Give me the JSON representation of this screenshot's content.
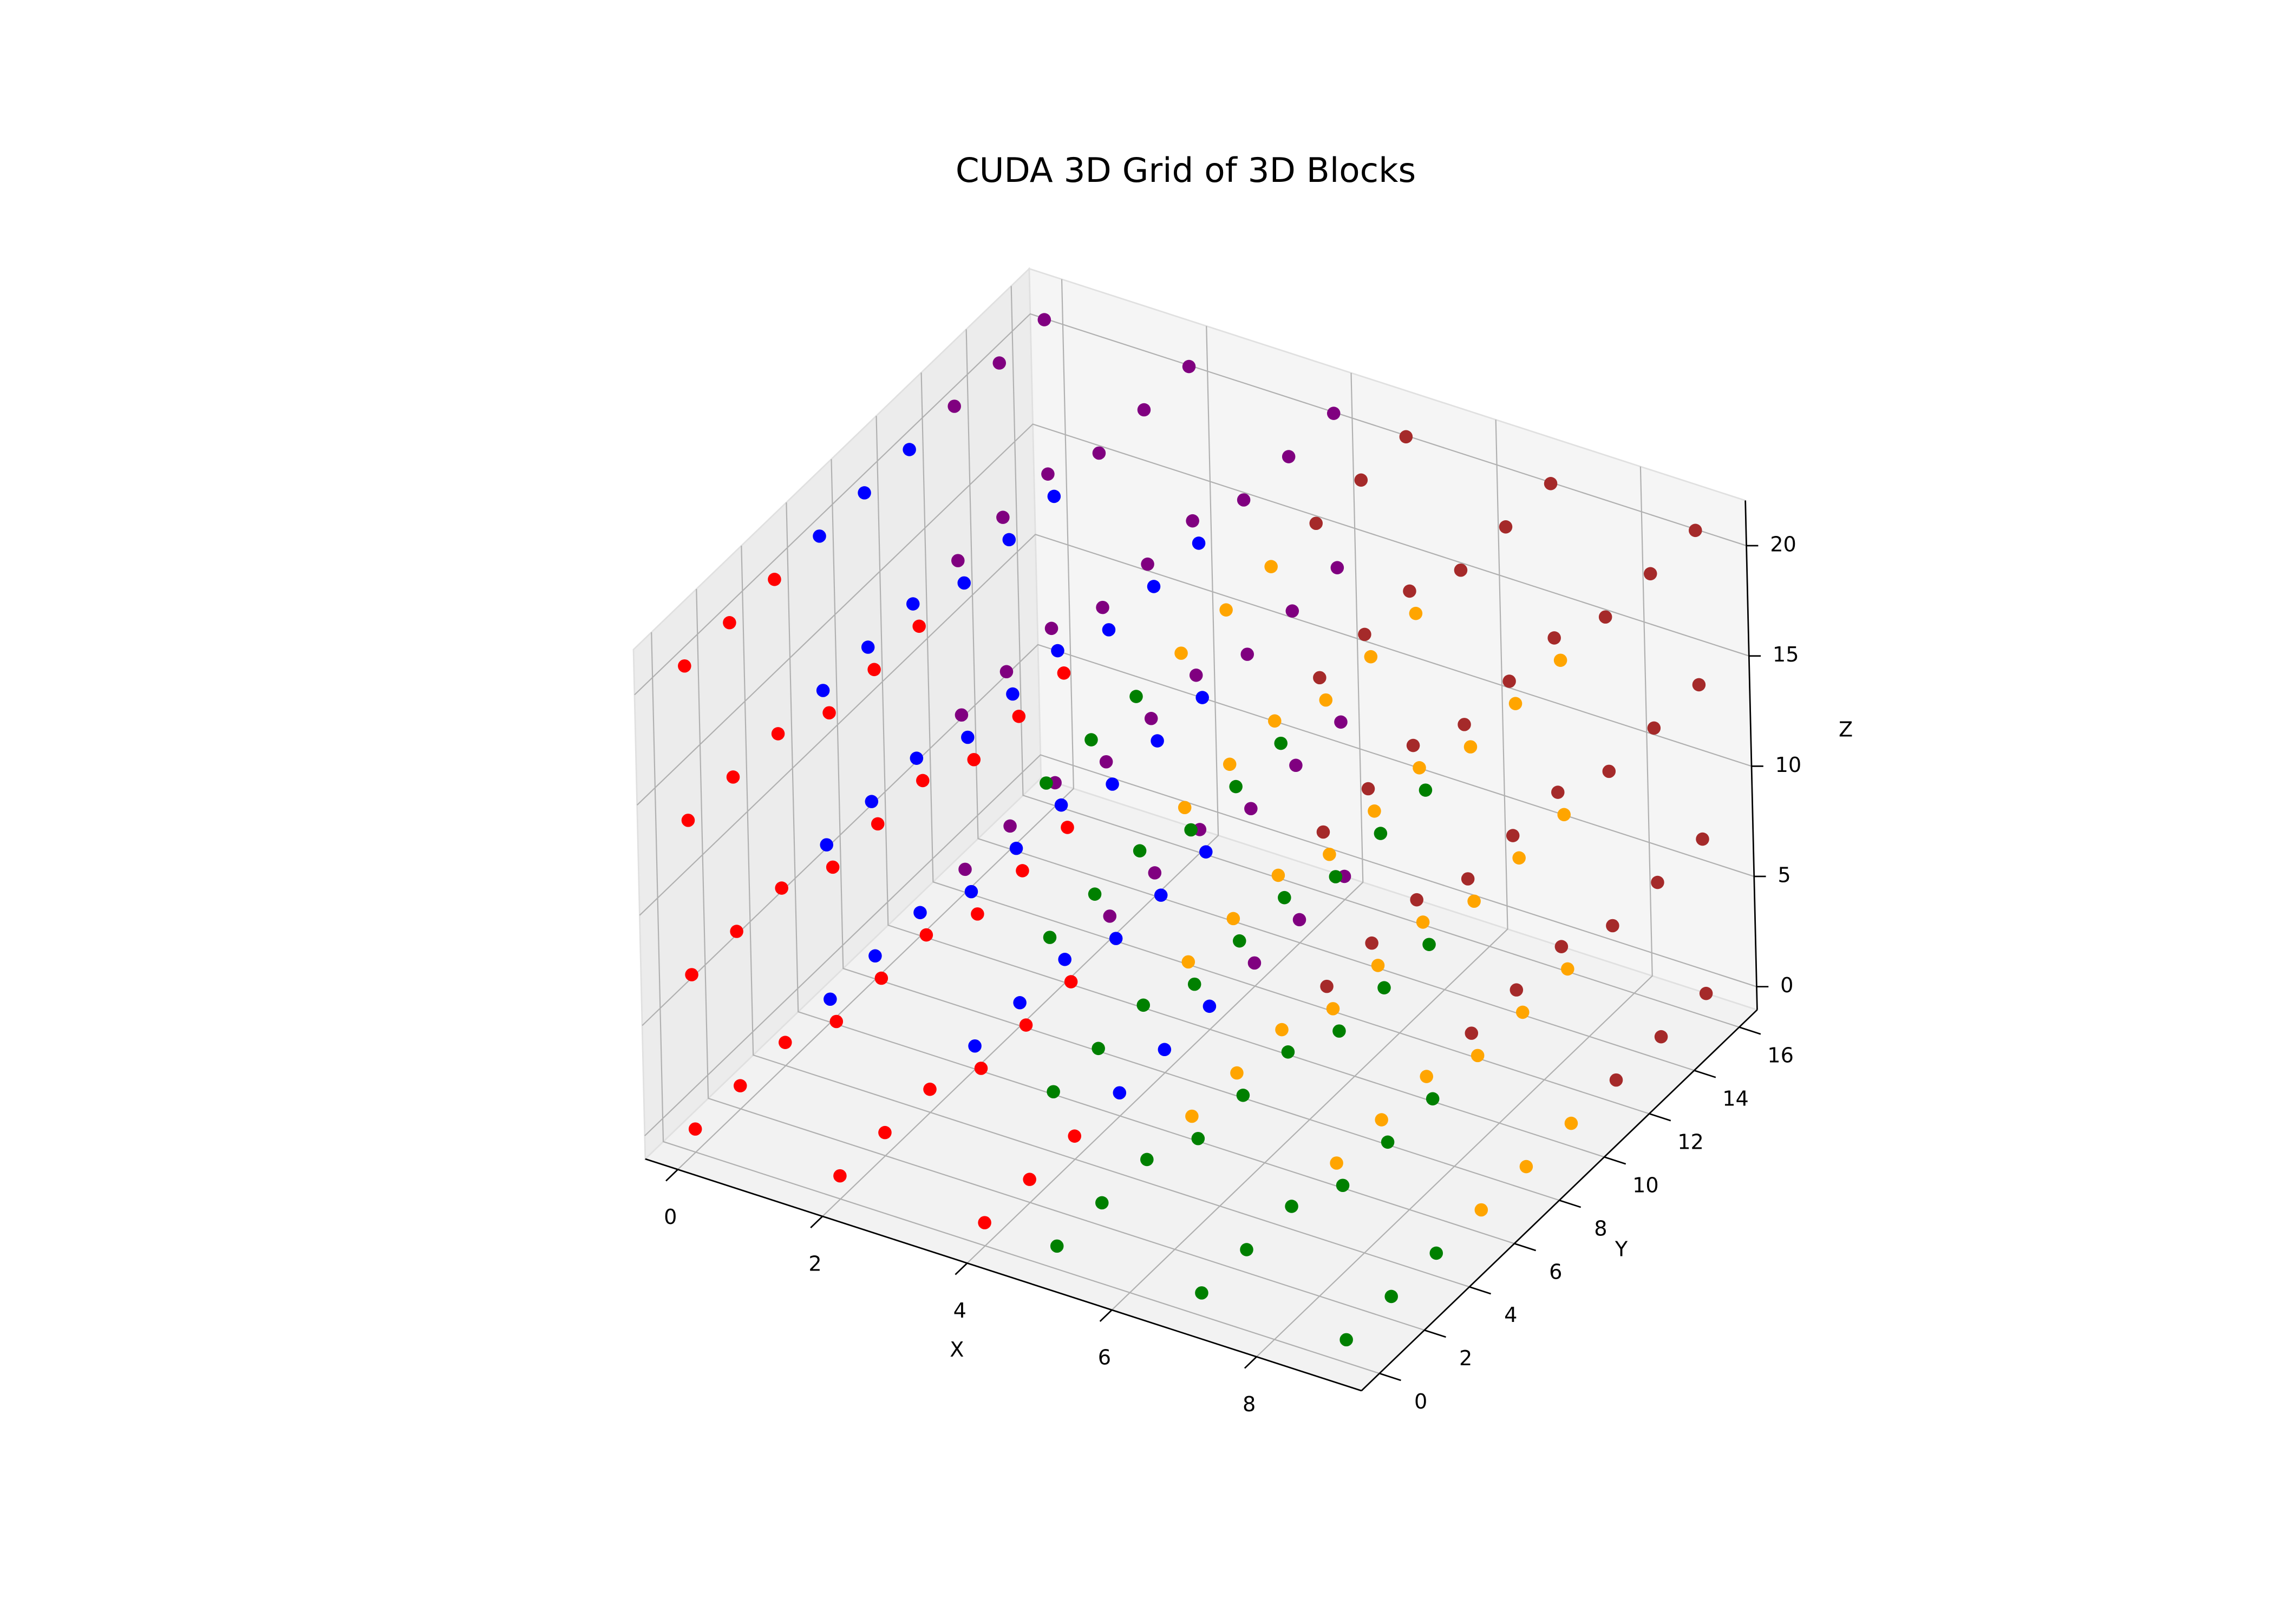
{
  "chart_data": {
    "type": "scatter",
    "title": "CUDA 3D Grid of 3D Blocks",
    "x_label": "X",
    "y_label": "Y",
    "z_label": "Z",
    "xlim": [
      -0.45,
      9.45
    ],
    "ylim": [
      -0.8,
      16.8
    ],
    "zlim": [
      -1.05,
      22.05
    ],
    "xticks": [
      0,
      2,
      4,
      6,
      8
    ],
    "yticks": [
      0,
      2,
      4,
      6,
      8,
      10,
      12,
      14,
      16
    ],
    "zticks": [
      0,
      5,
      10,
      15,
      20
    ],
    "grid": true,
    "series": [
      {
        "color": "red",
        "x": [
          0,
          0,
          0,
          0,
          0,
          0,
          0,
          0,
          0,
          0,
          0,
          0,
          2,
          2,
          2,
          2,
          2,
          2,
          2,
          2,
          2,
          2,
          2,
          2,
          4,
          4,
          4,
          4,
          4,
          4,
          4,
          4,
          4,
          4,
          4,
          4
        ],
        "y": [
          0,
          0,
          0,
          0,
          2,
          2,
          2,
          2,
          4,
          4,
          4,
          4,
          0,
          0,
          0,
          0,
          2,
          2,
          2,
          2,
          4,
          4,
          4,
          4,
          0,
          0,
          0,
          0,
          2,
          2,
          2,
          2,
          4,
          4,
          4,
          4
        ],
        "z": [
          0,
          7,
          14,
          21,
          0,
          7,
          14,
          21,
          0,
          7,
          14,
          21,
          0,
          7,
          14,
          21,
          0,
          7,
          14,
          21,
          0,
          7,
          14,
          21,
          0,
          7,
          14,
          21,
          0,
          7,
          14,
          21,
          0,
          7,
          14,
          21
        ]
      },
      {
        "color": "green",
        "x": [
          5,
          5,
          5,
          5,
          5,
          5,
          5,
          5,
          5,
          5,
          5,
          5,
          7,
          7,
          7,
          7,
          7,
          7,
          7,
          7,
          7,
          7,
          7,
          7,
          9,
          9,
          9,
          9,
          9,
          9,
          9,
          9,
          9,
          9,
          9,
          9
        ],
        "y": [
          0,
          0,
          0,
          0,
          2,
          2,
          2,
          2,
          4,
          4,
          4,
          4,
          0,
          0,
          0,
          0,
          2,
          2,
          2,
          2,
          4,
          4,
          4,
          4,
          0,
          0,
          0,
          0,
          2,
          2,
          2,
          2,
          4,
          4,
          4,
          4
        ],
        "z": [
          0,
          7,
          14,
          21,
          0,
          7,
          14,
          21,
          0,
          7,
          14,
          21,
          0,
          7,
          14,
          21,
          0,
          7,
          14,
          21,
          0,
          7,
          14,
          21,
          0,
          7,
          14,
          21,
          0,
          7,
          14,
          21,
          0,
          7,
          14,
          21
        ]
      },
      {
        "color": "blue",
        "x": [
          0,
          0,
          0,
          0,
          0,
          0,
          0,
          0,
          0,
          0,
          0,
          0,
          2,
          2,
          2,
          2,
          2,
          2,
          2,
          2,
          2,
          2,
          2,
          2,
          4,
          4,
          4,
          4,
          4,
          4,
          4,
          4,
          4,
          4,
          4,
          4
        ],
        "y": [
          6,
          6,
          6,
          6,
          8,
          8,
          8,
          8,
          10,
          10,
          10,
          10,
          6,
          6,
          6,
          6,
          8,
          8,
          8,
          8,
          10,
          10,
          10,
          10,
          6,
          6,
          6,
          6,
          8,
          8,
          8,
          8,
          10,
          10,
          10,
          10
        ],
        "z": [
          0,
          7,
          14,
          21,
          0,
          7,
          14,
          21,
          0,
          7,
          14,
          21,
          0,
          7,
          14,
          21,
          0,
          7,
          14,
          21,
          0,
          7,
          14,
          21,
          0,
          7,
          14,
          21,
          0,
          7,
          14,
          21,
          0,
          7,
          14,
          21
        ]
      },
      {
        "color": "orange",
        "x": [
          5,
          5,
          5,
          5,
          5,
          5,
          5,
          5,
          5,
          5,
          5,
          5,
          7,
          7,
          7,
          7,
          7,
          7,
          7,
          7,
          7,
          7,
          7,
          7,
          9,
          9,
          9,
          9,
          9,
          9,
          9,
          9,
          9,
          9,
          9,
          9
        ],
        "y": [
          6,
          6,
          6,
          6,
          8,
          8,
          8,
          8,
          10,
          10,
          10,
          10,
          6,
          6,
          6,
          6,
          8,
          8,
          8,
          8,
          10,
          10,
          10,
          10,
          6,
          6,
          6,
          6,
          8,
          8,
          8,
          8,
          10,
          10,
          10,
          10
        ],
        "z": [
          0,
          7,
          14,
          21,
          0,
          7,
          14,
          21,
          0,
          7,
          14,
          21,
          0,
          7,
          14,
          21,
          0,
          7,
          14,
          21,
          0,
          7,
          14,
          21,
          0,
          7,
          14,
          21,
          0,
          7,
          14,
          21,
          0,
          7,
          14,
          21
        ]
      },
      {
        "color": "purple",
        "x": [
          0,
          0,
          0,
          0,
          0,
          0,
          0,
          0,
          0,
          0,
          0,
          0,
          2,
          2,
          2,
          2,
          2,
          2,
          2,
          2,
          2,
          2,
          2,
          2,
          4,
          4,
          4,
          4,
          4,
          4,
          4,
          4,
          4,
          4,
          4,
          4
        ],
        "y": [
          12,
          12,
          12,
          12,
          14,
          14,
          14,
          14,
          16,
          16,
          16,
          16,
          12,
          12,
          12,
          12,
          14,
          14,
          14,
          14,
          16,
          16,
          16,
          16,
          12,
          12,
          12,
          12,
          14,
          14,
          14,
          14,
          16,
          16,
          16,
          16
        ],
        "z": [
          0,
          7,
          14,
          21,
          0,
          7,
          14,
          21,
          0,
          7,
          14,
          21,
          0,
          7,
          14,
          21,
          0,
          7,
          14,
          21,
          0,
          7,
          14,
          21,
          0,
          7,
          14,
          21,
          0,
          7,
          14,
          21,
          0,
          7,
          14,
          21
        ]
      },
      {
        "color": "brown",
        "x": [
          5,
          5,
          5,
          5,
          5,
          5,
          5,
          5,
          5,
          5,
          5,
          5,
          7,
          7,
          7,
          7,
          7,
          7,
          7,
          7,
          7,
          7,
          7,
          7,
          9,
          9,
          9,
          9,
          9,
          9,
          9,
          9,
          9,
          9,
          9,
          9
        ],
        "y": [
          12,
          12,
          12,
          12,
          14,
          14,
          14,
          14,
          16,
          16,
          16,
          16,
          12,
          12,
          12,
          12,
          14,
          14,
          14,
          14,
          16,
          16,
          16,
          16,
          12,
          12,
          12,
          12,
          14,
          14,
          14,
          14,
          16,
          16,
          16,
          16
        ],
        "z": [
          0,
          7,
          14,
          21,
          0,
          7,
          14,
          21,
          0,
          7,
          14,
          21,
          0,
          7,
          14,
          21,
          0,
          7,
          14,
          21,
          0,
          7,
          14,
          21,
          0,
          7,
          14,
          21,
          0,
          7,
          14,
          21,
          0,
          7,
          14,
          21
        ]
      }
    ]
  }
}
